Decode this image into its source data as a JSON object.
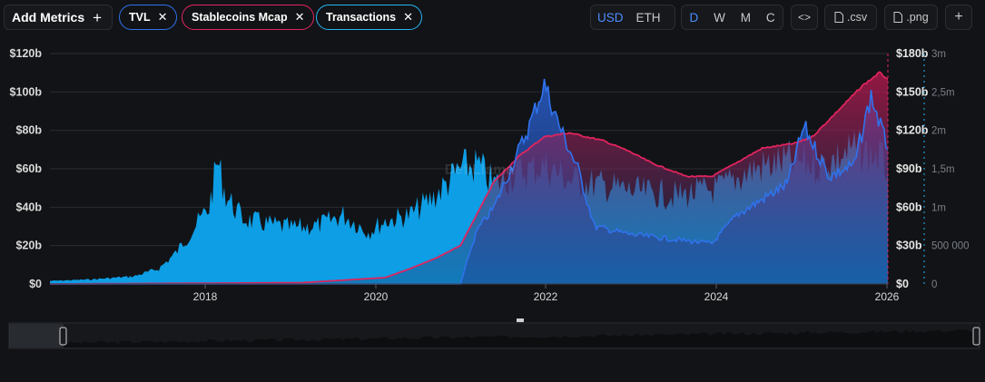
{
  "toolbar": {
    "add_metrics_label": "Add Metrics",
    "metrics": [
      {
        "label": "TVL",
        "color": "#2f72ec"
      },
      {
        "label": "Stablecoins Mcap",
        "color": "#e0245e"
      },
      {
        "label": "Transactions",
        "color": "#24b5f5"
      }
    ],
    "denomination": [
      "USD",
      "ETH"
    ],
    "denomination_active": "USD",
    "groupings": [
      "D",
      "W",
      "M",
      "C"
    ],
    "grouping_active": "D",
    "embed_icon": "code-icon",
    "csv_label": ".csv",
    "png_label": ".png",
    "add_icon": "plus-icon"
  },
  "chart_data": {
    "type": "area",
    "x_ticks": [
      "2018",
      "2020",
      "2022",
      "2024",
      "2026"
    ],
    "x_range": [
      "2016-01",
      "2026-02"
    ],
    "axes": {
      "tvl": {
        "ticks": [
          "$0",
          "$20b",
          "$40b",
          "$60b",
          "$80b",
          "$100b",
          "$120b"
        ],
        "range": [
          0,
          120
        ],
        "color": "#d9d9d9"
      },
      "stablecoins": {
        "ticks": [
          "$0",
          "$30b",
          "$60b",
          "$90b",
          "$120b",
          "$150b",
          "$180b"
        ],
        "range": [
          0,
          180
        ],
        "color": "#e6e6e6"
      },
      "transactions": {
        "ticks": [
          "0",
          "500 000",
          "1m",
          "1,5m",
          "2m",
          "2,5m",
          "3m"
        ],
        "range": [
          0,
          3000000
        ],
        "color": "#7a7f88"
      }
    },
    "grid": true,
    "watermark": "DefiLlama",
    "series": [
      {
        "name": "Transactions",
        "color": "#0ea5f0",
        "axis": "transactions",
        "x": [
          2016.0,
          2016.5,
          2017.0,
          2017.3,
          2017.5,
          2017.7,
          2017.9,
          2018.0,
          2018.1,
          2018.3,
          2018.6,
          2018.9,
          2019.2,
          2019.5,
          2019.8,
          2020.0,
          2020.3,
          2020.6,
          2020.9,
          2021.1,
          2021.3,
          2021.6,
          2021.9,
          2022.2,
          2022.6,
          2023.0,
          2023.5,
          2024.0,
          2024.4,
          2024.8,
          2025.2,
          2025.6,
          2025.9,
          2026.0
        ],
        "values": [
          40000,
          60000,
          100000,
          200000,
          400000,
          700000,
          1000000,
          1600000,
          1150000,
          850000,
          780000,
          730000,
          760000,
          900000,
          680000,
          820000,
          900000,
          1150000,
          1500000,
          1550000,
          1300000,
          1450000,
          1550000,
          1350000,
          1280000,
          1200000,
          1150000,
          1250000,
          1500000,
          1600000,
          1550000,
          1750000,
          1650000,
          1500000
        ]
      },
      {
        "name": "TVL",
        "color": "#2f72ec",
        "axis": "tvl",
        "x": [
          2016.0,
          2020.0,
          2020.5,
          2020.9,
          2021.0,
          2021.1,
          2021.3,
          2021.5,
          2021.7,
          2021.9,
          2022.1,
          2022.3,
          2022.5,
          2022.9,
          2023.3,
          2023.7,
          2023.9,
          2024.2,
          2024.5,
          2024.8,
          2025.0,
          2025.3,
          2025.6,
          2025.8,
          2026.0
        ],
        "values": [
          0,
          0,
          0,
          0,
          15,
          28,
          40,
          60,
          80,
          104,
          80,
          60,
          30,
          26,
          24,
          22,
          21,
          36,
          44,
          52,
          82,
          56,
          62,
          98,
          70
        ]
      },
      {
        "name": "Stablecoins Mcap",
        "color": "#e0245e",
        "axis": "stablecoins",
        "x": [
          2016.0,
          2019.0,
          2019.5,
          2020.0,
          2020.3,
          2020.6,
          2020.9,
          2021.1,
          2021.3,
          2021.6,
          2021.9,
          2022.2,
          2022.6,
          2022.9,
          2023.2,
          2023.6,
          2023.9,
          2024.2,
          2024.5,
          2024.9,
          2025.1,
          2025.4,
          2025.7,
          2025.9,
          2026.0
        ],
        "values": [
          0,
          1,
          3,
          5,
          12,
          20,
          30,
          55,
          80,
          100,
          115,
          118,
          112,
          104,
          94,
          84,
          84,
          95,
          106,
          110,
          115,
          135,
          155,
          165,
          160
        ]
      }
    ]
  }
}
